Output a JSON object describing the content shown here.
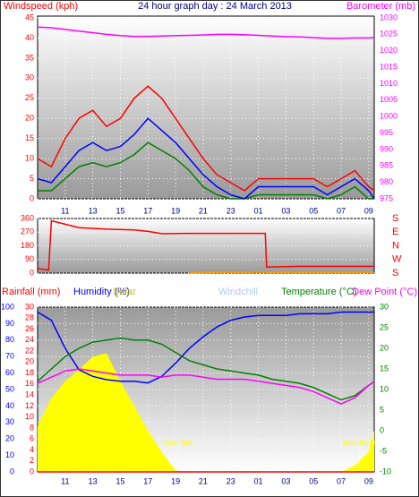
{
  "chart_data": [
    {
      "type": "line",
      "title": "24 hour graph day : 24 March 2013",
      "ylabel": "Windspeed (kph)",
      "y2label": "Barometer (mb)",
      "ycolor": "#ff0000",
      "y2color": "#ff00ff",
      "x": [
        9,
        10,
        11,
        12,
        13,
        14,
        15,
        16,
        17,
        18,
        19,
        20,
        21,
        22,
        23,
        24,
        25,
        26,
        27,
        28,
        29,
        30,
        31,
        32,
        33,
        33.4
      ],
      "xlim": [
        9,
        33.4
      ],
      "xticks": [
        11,
        13,
        15,
        17,
        19,
        21,
        23,
        {
          "value": 25,
          "label": "01"
        },
        {
          "value": 27,
          "label": "03"
        },
        {
          "value": 29,
          "label": "05"
        },
        {
          "value": 31,
          "label": "07"
        },
        {
          "value": 33,
          "label": "09"
        }
      ],
      "ylim": [
        0,
        45
      ],
      "yticks": [
        0,
        5,
        10,
        15,
        20,
        25,
        30,
        35,
        40,
        45
      ],
      "y2lim": [
        975,
        1030
      ],
      "y2ticks": [
        975,
        980,
        985,
        990,
        995,
        1000,
        1005,
        1010,
        1015,
        1020,
        1025,
        1030
      ],
      "grid": true,
      "series": [
        {
          "color": "#ff0000",
          "values": [
            10,
            8,
            15,
            20,
            22,
            18,
            20,
            25,
            28,
            25,
            20,
            15,
            10,
            6,
            4,
            2,
            5,
            5,
            5,
            5,
            5,
            3,
            5,
            7,
            3,
            2
          ]
        },
        {
          "color": "#008000",
          "values": [
            2,
            2,
            5,
            8,
            9,
            8,
            9,
            11,
            14,
            12,
            10,
            7,
            3,
            1,
            0,
            0,
            1,
            1,
            1,
            1,
            1,
            0,
            1,
            3,
            0,
            0
          ]
        },
        {
          "color": "#0000ff",
          "values": [
            5,
            4,
            8,
            12,
            14,
            12,
            13,
            16,
            20,
            17,
            14,
            10,
            6,
            3,
            1,
            0,
            3,
            3,
            3,
            3,
            3,
            1,
            3,
            5,
            2,
            0
          ]
        },
        {
          "color": "#ff00ff",
          "axis": "y2",
          "values": [
            1027.2,
            1027,
            1026.5,
            1026,
            1025.5,
            1025,
            1024.6,
            1024.4,
            1024.4,
            1024.5,
            1024.6,
            1024.7,
            1024.8,
            1025,
            1025,
            1024.9,
            1024.7,
            1024.5,
            1024.3,
            1024.2,
            1024,
            1023.8,
            1023.8,
            1023.9,
            1023.9,
            1024
          ]
        }
      ]
    },
    {
      "type": "line",
      "ycolor": "#ff0000",
      "x": [
        9,
        9.8,
        10,
        12,
        14,
        16,
        17,
        18,
        20,
        22,
        24,
        25.5,
        25.6,
        28,
        30,
        33.4
      ],
      "xlim": [
        9,
        33.4
      ],
      "ylim": [
        0,
        360
      ],
      "yticks": [
        0,
        90,
        180,
        270,
        360
      ],
      "compass": [
        "S",
        "W",
        "N",
        "E",
        "S"
      ],
      "grid": true,
      "series": [
        {
          "color": "#ff0000",
          "values": [
            30,
            20,
            345,
            300,
            290,
            285,
            275,
            260,
            262,
            262,
            262,
            262,
            40,
            45,
            45,
            45
          ]
        },
        {
          "color": "#ff9900",
          "values": [
            null,
            null,
            null,
            null,
            null,
            null,
            null,
            null,
            3,
            4,
            5,
            6,
            5,
            4,
            4,
            5
          ]
        }
      ]
    },
    {
      "type": "line",
      "labels": [
        "Rainfall (mm)",
        "Humidity (%)",
        "Solar",
        "Windchill",
        "Temperature (°C)",
        "Dew Point (°C)"
      ],
      "x": [
        9,
        10,
        11,
        12,
        13,
        14,
        15,
        16,
        17,
        18,
        19,
        20,
        21,
        22,
        23,
        24,
        25,
        26,
        27,
        28,
        29,
        30,
        31,
        32,
        33,
        33.4
      ],
      "xlim": [
        9,
        33.4
      ],
      "xticks": [
        11,
        13,
        15,
        17,
        19,
        21,
        23,
        {
          "value": 25,
          "label": "01"
        },
        {
          "value": 27,
          "label": "03"
        },
        {
          "value": 29,
          "label": "05"
        },
        {
          "value": 31,
          "label": "07"
        },
        {
          "value": 33,
          "label": "09"
        }
      ],
      "ylim": [
        0,
        100
      ],
      "yticks": [
        0,
        10,
        20,
        30,
        40,
        50,
        60,
        70,
        80,
        90,
        100
      ],
      "ycolor": "#0000ff",
      "y3lim": [
        0,
        30
      ],
      "y3ticks": [
        0,
        2,
        4,
        6,
        8,
        10,
        12,
        14,
        16,
        18,
        20,
        22,
        24,
        26,
        28,
        30
      ],
      "y3color": "#ff0000",
      "y2lim": [
        -10,
        30
      ],
      "y2ticks": [
        -10,
        -5,
        0,
        5,
        10,
        15,
        20,
        25,
        30
      ],
      "y2color": "#008000",
      "grid": true,
      "annotations": [
        {
          "text": "Sun Set",
          "x": 19.2
        },
        {
          "text": "Sun Rise",
          "x": 32.3
        }
      ],
      "series": [
        {
          "color": "#ffff00",
          "style": "area",
          "values": [
            28,
            45,
            55,
            62,
            70,
            72,
            55,
            40,
            25,
            12,
            1,
            0,
            0,
            0,
            0,
            0,
            0,
            0,
            0,
            0,
            0,
            0,
            0,
            4,
            12,
            25
          ]
        },
        {
          "color": "#ff0000",
          "axis": "y3",
          "values": [
            0,
            0,
            0,
            0,
            0,
            0,
            0,
            0,
            0,
            0,
            0,
            0,
            0,
            0,
            0,
            0,
            0,
            0,
            0,
            0,
            0,
            0,
            0,
            0,
            0,
            0
          ]
        },
        {
          "color": "#0000ff",
          "values": [
            97,
            92,
            75,
            62,
            58,
            56,
            55,
            55,
            54,
            58,
            66,
            75,
            82,
            88,
            92,
            94,
            95,
            95,
            95,
            96,
            96,
            96,
            97,
            97,
            97,
            97
          ]
        },
        {
          "color": "#008000",
          "axis": "y2",
          "values": [
            12,
            15,
            18,
            20,
            21.5,
            22,
            22.5,
            22,
            22,
            21,
            19,
            17,
            16,
            15,
            14.5,
            14,
            13.5,
            12.5,
            12,
            11.5,
            10.5,
            9,
            7.5,
            8.5,
            11,
            12
          ]
        },
        {
          "color": "#ff00ff",
          "axis": "y2",
          "values": [
            11.5,
            13,
            14.5,
            15,
            14.5,
            14,
            13.5,
            13.5,
            13.5,
            13,
            13.5,
            13.5,
            13,
            12.5,
            12.5,
            12.5,
            12,
            11.5,
            11,
            10.5,
            9.5,
            8,
            6.5,
            8,
            11,
            12
          ]
        }
      ]
    }
  ]
}
